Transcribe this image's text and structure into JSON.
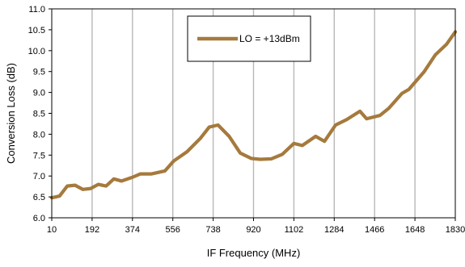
{
  "chart_data": {
    "type": "line",
    "title": "",
    "xlabel": "IF Frequency (MHz)",
    "ylabel": "Conversion Loss (dB)",
    "xlim": [
      10,
      1830
    ],
    "ylim": [
      6.0,
      11.0
    ],
    "x_ticks": [
      "10",
      "192",
      "374",
      "556",
      "738",
      "920",
      "1102",
      "1284",
      "1466",
      "1648",
      "1830"
    ],
    "y_ticks": [
      "6.0",
      "6.5",
      "7.0",
      "7.5",
      "8.0",
      "8.5",
      "9.0",
      "9.5",
      "10.0",
      "10.5",
      "11.0"
    ],
    "grid": {
      "vertical": true,
      "horizontal": false
    },
    "legend_position": "top-center",
    "series": [
      {
        "name": "LO = +13dBm",
        "color": "#a57a3d",
        "points": [
          [
            10,
            6.48
          ],
          [
            45,
            6.52
          ],
          [
            80,
            6.76
          ],
          [
            115,
            6.78
          ],
          [
            150,
            6.68
          ],
          [
            185,
            6.7
          ],
          [
            220,
            6.8
          ],
          [
            255,
            6.76
          ],
          [
            290,
            6.93
          ],
          [
            325,
            6.88
          ],
          [
            374,
            6.97
          ],
          [
            410,
            7.05
          ],
          [
            460,
            7.05
          ],
          [
            520,
            7.12
          ],
          [
            560,
            7.36
          ],
          [
            620,
            7.58
          ],
          [
            680,
            7.9
          ],
          [
            720,
            8.17
          ],
          [
            760,
            8.22
          ],
          [
            810,
            7.95
          ],
          [
            860,
            7.55
          ],
          [
            910,
            7.42
          ],
          [
            950,
            7.4
          ],
          [
            1000,
            7.41
          ],
          [
            1050,
            7.52
          ],
          [
            1102,
            7.78
          ],
          [
            1140,
            7.73
          ],
          [
            1200,
            7.95
          ],
          [
            1240,
            7.83
          ],
          [
            1290,
            8.22
          ],
          [
            1340,
            8.35
          ],
          [
            1400,
            8.55
          ],
          [
            1430,
            8.37
          ],
          [
            1490,
            8.45
          ],
          [
            1530,
            8.62
          ],
          [
            1590,
            8.98
          ],
          [
            1620,
            9.07
          ],
          [
            1690,
            9.5
          ],
          [
            1740,
            9.9
          ],
          [
            1790,
            10.15
          ],
          [
            1830,
            10.45
          ]
        ]
      }
    ]
  }
}
